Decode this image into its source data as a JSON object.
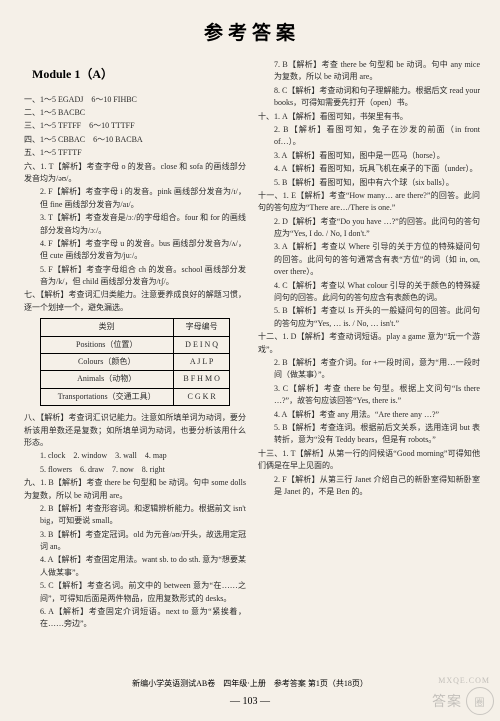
{
  "title": "参考答案",
  "module": "Module 1（A）",
  "left": {
    "answers": [
      "一、1～5 EGADJ　6～10 FIHBC",
      "二、1～5 BACBC",
      "三、1～5 TFTFF　6～10 TTTFF",
      "四、1～5 CBBAC　6～10 BACBA",
      "五、1～5 TFTTF"
    ],
    "six_intro": "六、1. T【解析】考查字母 o 的发音。close 和 sofa 的画线部分发音均为/əʊ/。",
    "six_items": [
      "2. F【解析】考查字母 i 的发音。pink 画线部分发音为/ɪ/，但 fine 画线部分发音为/aɪ/。",
      "3. T【解析】考查发音是/ɔː/的字母组合。four 和 for 的画线部分发音均为/ɔː/。",
      "4. F【解析】考查字母 u 的发音。bus 画线部分发音为/ʌ/，但 cute 画线部分发音为/juː/。",
      "5. F【解析】考查字母组合 ch 的发音。school 画线部分发音为/k/，但 child 画线部分发音为/tʃ/。"
    ],
    "seven_intro": "七、【解析】考查词汇归类能力。注意要养成良好的解题习惯，逐一个划掉一个，避免漏选。",
    "table": {
      "headers": [
        "类别",
        "字母编号"
      ],
      "rows": [
        [
          "Positions（位置）",
          "D E I N Q"
        ],
        [
          "Colours（颜色）",
          "A J L P"
        ],
        [
          "Animals（动物）",
          "B F H M O"
        ],
        [
          "Transportations（交通工具）",
          "C G K R"
        ]
      ]
    },
    "eight_intro": "八、【解析】考查词汇识记能力。注意如所填单词为动词，要分析该用单数还是复数；如所填单词为动词，也要分析该用什么形态。",
    "eight_ans1": "1. clock　2. window　3. wall　4. map",
    "eight_ans2": "5. flowers　6. draw　7. now　8. right",
    "nine_intro": "九、1. B【解析】考查 there be 句型和 be 动词。句中 some dolls 为复数，所以 be 动词用 are。",
    "nine_items": [
      "2. B【解析】考查形容词。和逻辑辨析能力。根据前文 isn't big，可知要说 small。",
      "3. B【解析】考查定冠词。old 为元音/əʊ/开头，故选用定冠词 an。",
      "4. A【解析】考查固定用法。want sb. to do sth. 意为“想要某人做某事”。",
      "5. C【解析】考查名词。前文中的 between 意为“在……之间”，可得知后面是两件物品，应用复数形式的 desks。",
      "6. A【解析】考查固定介词短语。next to 意为“紧挨着，在……旁边”。"
    ]
  },
  "right": {
    "items": [
      "7. B【解析】考查 there be 句型和 be 动词。句中 any mice 为复数，所以 be 动词用 are。",
      "8. C【解析】考查动词和句子理解能力。根据后文 read your books，可得知需要先打开（open）书。"
    ],
    "ten_intro": "十、1. A【解析】看图可知，书架里有书。",
    "ten_items": [
      "2. B【解析】看图可知，兔子在沙发的前面（in front of…）。",
      "3. A【解析】看图可知，图中是一匹马（horse）。",
      "4. A【解析】看图可知，玩具飞机在桌子的下面（under）。",
      "5. B【解析】看图可知，图中有六个球（six balls）。"
    ],
    "eleven_intro": "十一、1. E【解析】考查“How many… are there?”的回答。此问句的答句应为“There are…/There is one.”",
    "eleven_items": [
      "2. D【解析】考查“Do you have …?”的回答。此问句的答句应为“Yes, I do. / No, I don't.”",
      "3. A【解析】考查以 Where 引导的关于方位的特殊疑问句的回答。此问句的答句通常含有表“方位”的词（如 in, on, over there）。",
      "4. C【解析】考查以 What colour 引导的关于颜色的特殊疑问句的回答。此问句的答句应含有表颜色的词。",
      "5. B【解析】考查以 Is 开头的一般疑问句的回答。此问句的答句应为“Yes, … is. / No, … isn't.”"
    ],
    "twelve_intro": "十二、1. D【解析】考查动词短语。play a game 意为“玩一个游戏”。",
    "twelve_items": [
      "2. B【解析】考查介词。for +一段时间，意为“用…一段时间（做某事）”。",
      "3. C【解析】考查 there be 句型。根据上文问句“Is there …?”，故答句应该回答“Yes, there is.”",
      "4. A【解析】考查 any 用法。“Are there any …?”",
      "5. B【解析】考查连词。根据前后文关系，选用连词 but 表转折，意为“没有 Teddy bears，但是有 robots。”"
    ],
    "thirteen_intro": "十三、1. T【解析】从第一行的问候语“Good morning”可得知他们俩是在早上见面的。",
    "thirteen_item": "2. F【解析】从第三行 Janet 介绍自己的新卧室得知新卧室是 Janet 的，不是 Ben 的。"
  },
  "footer": "新编小学英语测试AB卷　四年级·上册　参考答案 第1页（共18页）",
  "page_num": "— 103 —",
  "watermark_site": "MXQE.COM",
  "watermark_text": "答案",
  "watermark_circle": "圈"
}
